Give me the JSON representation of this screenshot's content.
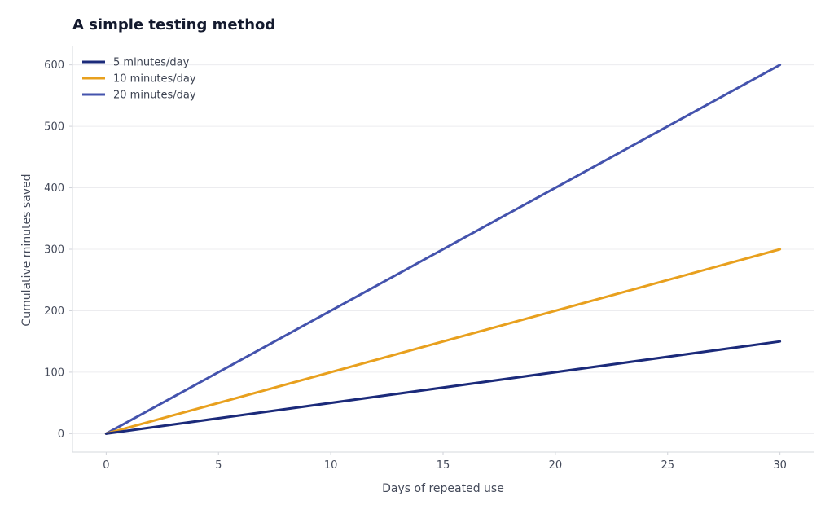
{
  "chart_data": {
    "type": "line",
    "title": "A simple testing method",
    "xlabel": "Days of repeated use",
    "ylabel": "Cumulative minutes saved",
    "xlim": [
      -1.5,
      31.5
    ],
    "ylim": [
      -30,
      630
    ],
    "xticks": [
      0,
      5,
      10,
      15,
      20,
      25,
      30
    ],
    "yticks": [
      0,
      100,
      200,
      300,
      400,
      500,
      600
    ],
    "grid": "horizontal",
    "legend": "top-left",
    "series": [
      {
        "name": "5 minutes/day",
        "color": "#1b2a7a",
        "x": [
          0,
          30
        ],
        "y": [
          0,
          150
        ]
      },
      {
        "name": "10 minutes/day",
        "color": "#e8a01e",
        "x": [
          0,
          30
        ],
        "y": [
          0,
          300
        ]
      },
      {
        "name": "20 minutes/day",
        "color": "#4453ad",
        "x": [
          0,
          30
        ],
        "y": [
          0,
          600
        ]
      }
    ]
  }
}
